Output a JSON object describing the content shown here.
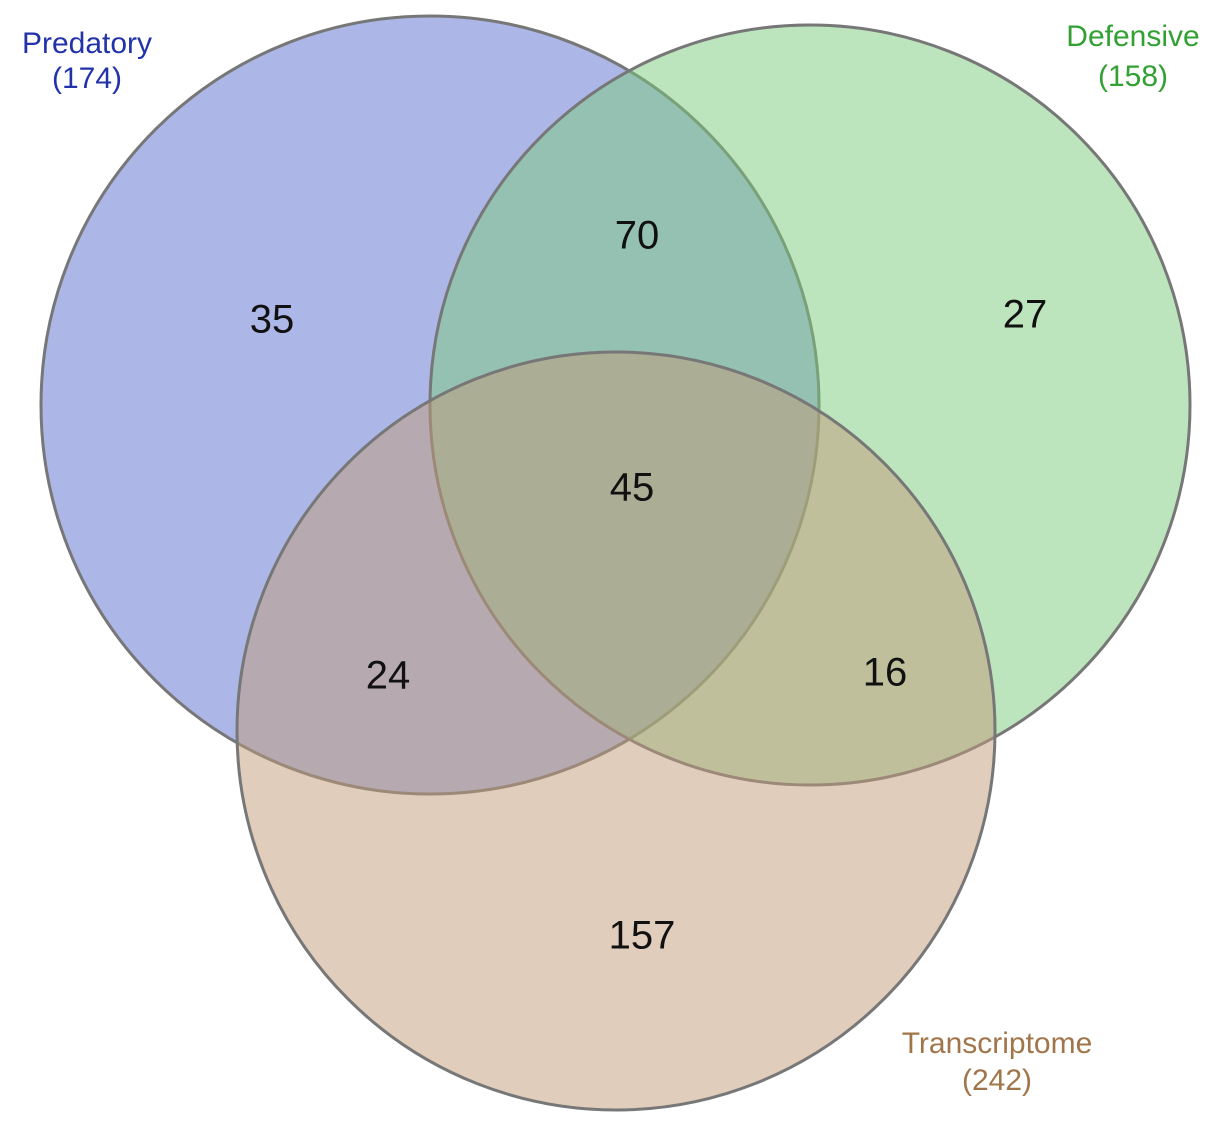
{
  "chart_data": {
    "type": "venn",
    "sets": [
      {
        "name": "Predatory",
        "size": 174,
        "size_label": "(174)",
        "color": "#5a6fcf",
        "text_color": "#2233aa"
      },
      {
        "name": "Defensive",
        "size": 158,
        "size_label": "(158)",
        "color": "#7ccb7c",
        "text_color": "#33a033"
      },
      {
        "name": "Transcriptome",
        "size": 242,
        "size_label": "(242)",
        "color": "#c19b7a",
        "text_color": "#a0754a"
      }
    ],
    "values": [
      35,
      27,
      157,
      70,
      24,
      16,
      45
    ]
  }
}
